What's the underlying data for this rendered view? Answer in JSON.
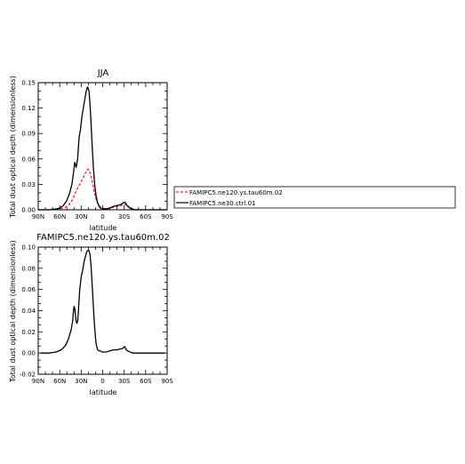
{
  "chart_data": [
    {
      "type": "line",
      "title": "JJA",
      "xlabel": "latitude",
      "ylabel": "Total dust optical depth (dimensionless)",
      "xlim": [
        90,
        -90
      ],
      "ylim": [
        0,
        0.15
      ],
      "x_ticks": [
        90,
        60,
        30,
        0,
        -30,
        -60,
        -90
      ],
      "x_tick_labels": [
        "90N",
        "60N",
        "30N",
        "0",
        "30S",
        "60S",
        "90S"
      ],
      "y_ticks": [
        0.0,
        0.03,
        0.06,
        0.09,
        0.12,
        0.15
      ],
      "y_tick_labels": [
        "0.00",
        "0.03",
        "0.06",
        "0.09",
        "0.12",
        "0.15"
      ],
      "legend_position": "right, outside plot",
      "series": [
        {
          "name": "FAMIPC5.ne120.ys.tau60m.02",
          "color": "#e8262b",
          "style": "dashed",
          "x": [
            90,
            75,
            60,
            52,
            46,
            42,
            38,
            35,
            32,
            29,
            27,
            25,
            23,
            21,
            19,
            17,
            15,
            13,
            11,
            9,
            7,
            5,
            3,
            0,
            -5,
            -10,
            -15,
            -20,
            -25,
            -30,
            -33,
            -36,
            -40,
            -50,
            -60,
            -75,
            -90
          ],
          "y": [
            0.0,
            0.0,
            0.001,
            0.003,
            0.007,
            0.012,
            0.02,
            0.026,
            0.03,
            0.035,
            0.038,
            0.042,
            0.045,
            0.048,
            0.047,
            0.042,
            0.035,
            0.026,
            0.018,
            0.012,
            0.008,
            0.005,
            0.003,
            0.002,
            0.001,
            0.002,
            0.003,
            0.004,
            0.005,
            0.006,
            0.007,
            0.004,
            0.001,
            0.0,
            0.0,
            0.0,
            0.0
          ]
        },
        {
          "name": "FAMIPC5.ne30.ctrl.01",
          "color": "#000000",
          "style": "solid",
          "x": [
            90,
            75,
            65,
            60,
            55,
            50,
            46,
            43,
            41,
            39,
            37,
            35,
            33,
            31,
            29,
            27,
            25,
            23,
            21,
            19,
            17,
            15,
            13,
            11,
            9,
            7,
            5,
            3,
            0,
            -5,
            -10,
            -15,
            -20,
            -25,
            -28,
            -31,
            -34,
            -38,
            -45,
            -60,
            -75,
            -90
          ],
          "y": [
            0.0,
            0.0,
            0.001,
            0.002,
            0.005,
            0.011,
            0.02,
            0.03,
            0.042,
            0.056,
            0.05,
            0.06,
            0.085,
            0.095,
            0.11,
            0.12,
            0.13,
            0.14,
            0.145,
            0.14,
            0.115,
            0.08,
            0.05,
            0.028,
            0.015,
            0.008,
            0.004,
            0.002,
            0.001,
            0.001,
            0.002,
            0.004,
            0.005,
            0.006,
            0.008,
            0.009,
            0.005,
            0.002,
            0.0,
            0.0,
            0.0,
            0.0
          ]
        }
      ]
    },
    {
      "type": "line",
      "title": "FAMIPC5.ne120.ys.tau60m.02",
      "xlabel": "latitude",
      "ylabel": "Total dust optical depth (dimensionless)",
      "xlim": [
        90,
        -90
      ],
      "ylim": [
        -0.02,
        0.1
      ],
      "x_ticks": [
        90,
        60,
        30,
        0,
        -30,
        -60,
        -90
      ],
      "x_tick_labels": [
        "90N",
        "60N",
        "30N",
        "0",
        "30S",
        "60S",
        "90S"
      ],
      "y_ticks": [
        -0.02,
        0.0,
        0.02,
        0.04,
        0.06,
        0.08,
        0.1
      ],
      "y_tick_labels": [
        "-0.02",
        "0.00",
        "0.02",
        "0.04",
        "0.06",
        "0.08",
        "0.10"
      ],
      "series": [
        {
          "color": "#000000",
          "style": "solid",
          "x": [
            87,
            75,
            65,
            58,
            52,
            48,
            44,
            42,
            41,
            40,
            39,
            38,
            37,
            36,
            35,
            34,
            33,
            32,
            31,
            30,
            29,
            28,
            27,
            26,
            25,
            24,
            23,
            22,
            21,
            20,
            19,
            18,
            17,
            16,
            15,
            14,
            13,
            12,
            11,
            10,
            9,
            8,
            7,
            5,
            3,
            1,
            -2,
            -5,
            -10,
            -15,
            -20,
            -25,
            -27,
            -29,
            -30,
            -31,
            -32,
            -33,
            -35,
            -38,
            -42,
            -50,
            -60,
            -75,
            -87
          ],
          "y": [
            0.0,
            0.0,
            0.001,
            0.003,
            0.007,
            0.013,
            0.022,
            0.03,
            0.038,
            0.044,
            0.042,
            0.036,
            0.03,
            0.028,
            0.03,
            0.038,
            0.05,
            0.06,
            0.066,
            0.072,
            0.075,
            0.078,
            0.082,
            0.086,
            0.089,
            0.091,
            0.094,
            0.096,
            0.0965,
            0.097,
            0.0965,
            0.094,
            0.088,
            0.08,
            0.068,
            0.056,
            0.044,
            0.032,
            0.022,
            0.014,
            0.008,
            0.005,
            0.003,
            0.002,
            0.002,
            0.001,
            0.001,
            0.001,
            0.002,
            0.003,
            0.003,
            0.004,
            0.004,
            0.005,
            0.006,
            0.006,
            0.004,
            0.003,
            0.002,
            0.001,
            0.0,
            0.0,
            0.0,
            0.0,
            0.0
          ]
        }
      ]
    }
  ]
}
